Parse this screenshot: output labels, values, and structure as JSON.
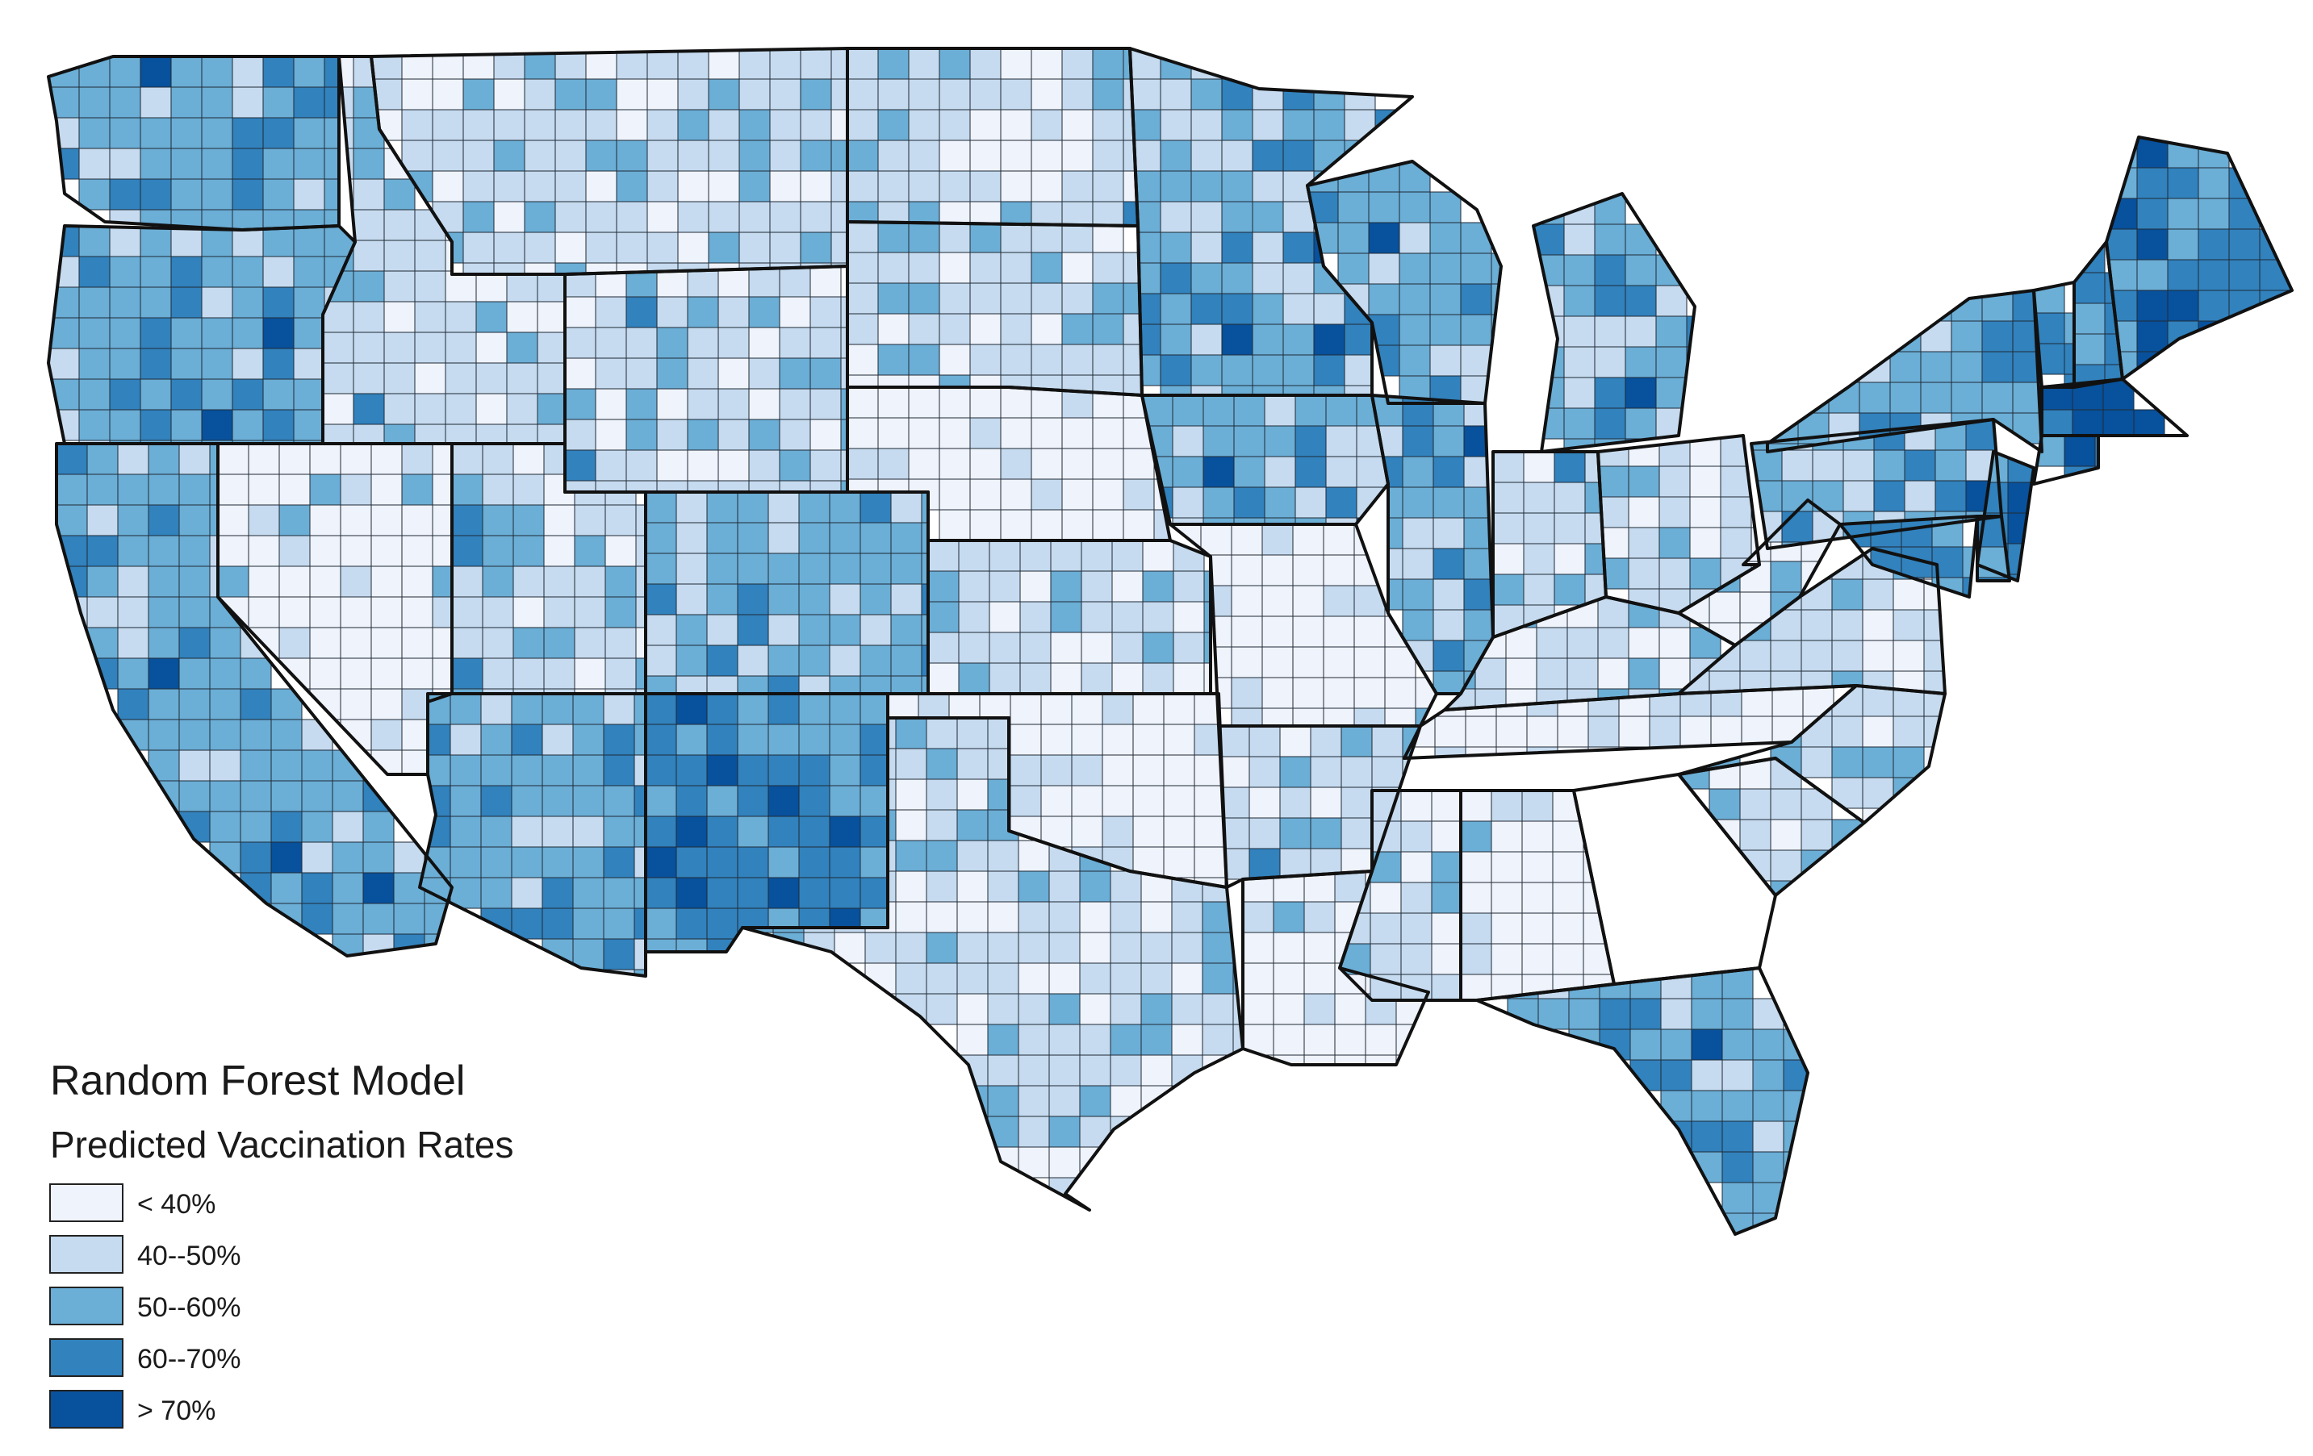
{
  "legend": {
    "title": "Random Forest Model",
    "subtitle": "Predicted Vaccination Rates",
    "classes": [
      {
        "label": "< 40%",
        "color": "#eff3fb"
      },
      {
        "label": "40--50%",
        "color": "#c6dbef"
      },
      {
        "label": "50--60%",
        "color": "#6baed6"
      },
      {
        "label": "60--70%",
        "color": "#3182bd"
      },
      {
        "label": "> 70%",
        "color": "#08519c"
      }
    ]
  },
  "colors": {
    "state_border": "#111111",
    "county_border": "#1f2a36",
    "background": "#ffffff"
  },
  "states": [
    {
      "name": "WA",
      "class": 2
    },
    {
      "name": "OR",
      "class": 2
    },
    {
      "name": "CA",
      "class": 2
    },
    {
      "name": "ID",
      "class": 1
    },
    {
      "name": "NV",
      "class": 0
    },
    {
      "name": "MT",
      "class": 1
    },
    {
      "name": "WY",
      "class": 1
    },
    {
      "name": "UT",
      "class": 1
    },
    {
      "name": "AZ",
      "class": 2
    },
    {
      "name": "CO",
      "class": 2
    },
    {
      "name": "NM",
      "class": 3
    },
    {
      "name": "ND",
      "class": 1
    },
    {
      "name": "SD",
      "class": 1
    },
    {
      "name": "NE",
      "class": 0
    },
    {
      "name": "KS",
      "class": 1
    },
    {
      "name": "OK",
      "class": 0
    },
    {
      "name": "TX",
      "class": 1
    },
    {
      "name": "MN",
      "class": 2
    },
    {
      "name": "IA",
      "class": 2
    },
    {
      "name": "MO",
      "class": 0
    },
    {
      "name": "AR",
      "class": 1
    },
    {
      "name": "LA",
      "class": 0
    },
    {
      "name": "WI",
      "class": 2
    },
    {
      "name": "IL",
      "class": 2
    },
    {
      "name": "MI",
      "class": 2
    },
    {
      "name": "IN",
      "class": 1
    },
    {
      "name": "OH",
      "class": 1
    },
    {
      "name": "KY",
      "class": 1
    },
    {
      "name": "TN",
      "class": 0
    },
    {
      "name": "MS",
      "class": 1
    },
    {
      "name": "AL",
      "class": 0
    },
    {
      "name": "GA",
      "class": -1
    },
    {
      "name": "FL",
      "class": 2
    },
    {
      "name": "SC",
      "class": 1
    },
    {
      "name": "NC",
      "class": 1
    },
    {
      "name": "VA",
      "class": 1
    },
    {
      "name": "WV",
      "class": 0
    },
    {
      "name": "PA",
      "class": 2
    },
    {
      "name": "NY",
      "class": 2
    },
    {
      "name": "VT",
      "class": 3
    },
    {
      "name": "NH",
      "class": 3
    },
    {
      "name": "ME",
      "class": 3
    },
    {
      "name": "MA",
      "class": 4
    },
    {
      "name": "CT",
      "class": 3
    },
    {
      "name": "NJ",
      "class": 3
    },
    {
      "name": "MD",
      "class": 3
    },
    {
      "name": "DE",
      "class": 3
    }
  ]
}
